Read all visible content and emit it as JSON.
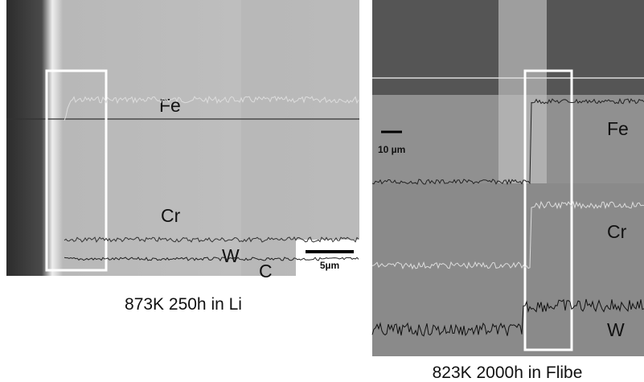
{
  "panels": [
    {
      "labels": [
        "Fe",
        "Cr",
        "W",
        "C"
      ],
      "scale_bar": "5µm",
      "caption": "873K 250h in Li"
    },
    {
      "labels": [
        "Fe",
        "Cr",
        "W"
      ],
      "scale_bar": "10 µm",
      "caption": "823K 2000h in Flibe"
    }
  ]
}
